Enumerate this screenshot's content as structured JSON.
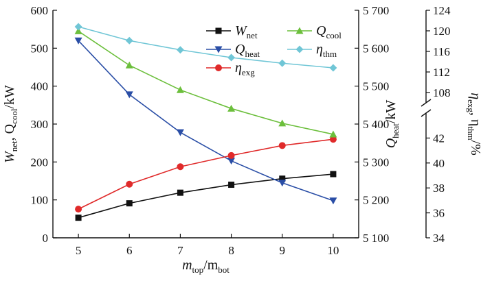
{
  "chart_data": {
    "type": "line",
    "x": [
      5,
      6,
      7,
      8,
      9,
      10
    ],
    "x_ticks": [
      "5",
      "6",
      "7",
      "8",
      "9",
      "10"
    ],
    "xlim": [
      4.5,
      10.5
    ],
    "xlabel": {
      "main": "m",
      "sub1": "top",
      "mid": "/m",
      "sub2": "bot"
    },
    "axes": {
      "left": {
        "ylim": [
          0,
          600
        ],
        "ticks": [
          "0",
          "100",
          "200",
          "300",
          "400",
          "500",
          "600"
        ],
        "label": {
          "p1": "W",
          "s1": "net",
          "p2": ", Q",
          "s2": "cool",
          "p3": "/kW"
        }
      },
      "right1": {
        "ylim": [
          5100,
          5700
        ],
        "ticks": [
          "5 100",
          "5 200",
          "5 300",
          "5 400",
          "5 500",
          "5 600",
          "5 700"
        ],
        "label": {
          "p1": "Q",
          "s1": "heat",
          "p2": "/kW"
        }
      },
      "right2": {
        "segments": [
          {
            "ylim": [
              34,
              44
            ],
            "ticks": [
              "34",
              "36",
              "38",
              "40",
              "42"
            ]
          },
          {
            "ylim": [
              106,
              124
            ],
            "ticks": [
              "108",
              "112",
              "116",
              "120",
              "124"
            ]
          }
        ],
        "label": {
          "p1": "η",
          "s1": "exg",
          "p2": ", η",
          "s2": "thm",
          "p3": "/%"
        }
      }
    },
    "series": [
      {
        "name": "W",
        "sub": "net",
        "axis": "left",
        "color": "#111111",
        "marker": "square",
        "values": [
          53,
          91,
          119,
          140,
          156,
          168
        ]
      },
      {
        "name": "Q",
        "sub": "heat",
        "axis": "right1",
        "color": "#2a4ea6",
        "marker": "triangle-down",
        "values": [
          5620,
          5478,
          5378,
          5303,
          5245,
          5198
        ]
      },
      {
        "name": "η",
        "sub": "exg",
        "axis": "right2",
        "color": "#e02a2a",
        "marker": "circle",
        "values": [
          36.3,
          38.3,
          39.7,
          40.6,
          41.4,
          41.9
        ]
      },
      {
        "name": "Q",
        "sub": "cool",
        "axis": "left",
        "color": "#6cbf3c",
        "marker": "triangle-up",
        "values": [
          545,
          455,
          390,
          341,
          302,
          273
        ]
      },
      {
        "name": "η",
        "sub": "thm",
        "axis": "right2",
        "color": "#70c6d6",
        "marker": "diamond",
        "values": [
          120.8,
          118.1,
          116.3,
          114.8,
          113.7,
          112.8
        ]
      }
    ],
    "legend_position": "top-right",
    "grid": false
  }
}
